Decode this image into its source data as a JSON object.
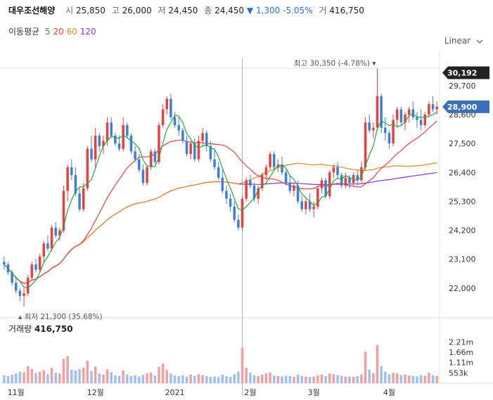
{
  "header": {
    "name": "대우조선해양",
    "open_label": "시",
    "open": "25,850",
    "high_label": "고",
    "high": "26,000",
    "low_label": "저",
    "low": "24,450",
    "close_label": "종",
    "close": "24,450",
    "change_arrow": "▼",
    "change": "1,300",
    "change_pct": "-5.05%",
    "vol_label": "거",
    "volume": "416,750"
  },
  "ma_legend": {
    "title": "이동평균",
    "items": [
      {
        "label": "5",
        "color": "#27a33a"
      },
      {
        "label": "20",
        "color": "#e5413f"
      },
      {
        "label": "60",
        "color": "#e3891d"
      },
      {
        "label": "120",
        "color": "#8a34d1"
      }
    ]
  },
  "scale_mode": "Linear",
  "volume_panel": {
    "title": "거래량",
    "value": "416,750"
  },
  "colors": {
    "up": "#e5413f",
    "down": "#3d7fd9",
    "ma5": "#27a33a",
    "ma20": "#e5413f",
    "ma60": "#e3891d",
    "ma120": "#8a34d1"
  },
  "chart_data": {
    "type": "candlestick",
    "title": "대우조선해양",
    "ylim": [
      21300,
      30500
    ],
    "y_ticks": [
      22000,
      23100,
      24200,
      25300,
      26400,
      27500,
      28600,
      29700
    ],
    "y_tick_labels": [
      "22,000",
      "23,100",
      "24,200",
      "25,300",
      "26,400",
      "27,500",
      "28,600",
      "29,700"
    ],
    "x_labels": [
      "11월",
      "12월",
      "2021",
      "2월",
      "3월",
      "4월"
    ],
    "x_label_indices": [
      3,
      23,
      43,
      62,
      78,
      97
    ],
    "current_price_label": "28,900",
    "current_price": 28900,
    "highlight_label": "30,192",
    "highlight_price": 30192,
    "max_annotation": {
      "label": "최고",
      "value": "30,350 (-4.78%)",
      "price": 30350,
      "index": 94
    },
    "min_annotation": {
      "label": "최저",
      "value": "21,300 (35.68%)",
      "price": 21300,
      "index": 5
    },
    "crosshair_index": 60,
    "candles": [
      [
        23000,
        23200,
        22700,
        22900
      ],
      [
        22900,
        23000,
        22500,
        22600
      ],
      [
        22600,
        22700,
        22100,
        22200
      ],
      [
        22200,
        22400,
        21800,
        21900
      ],
      [
        21900,
        22000,
        21500,
        21700
      ],
      [
        21700,
        22000,
        21300,
        21800
      ],
      [
        21800,
        22500,
        21700,
        22400
      ],
      [
        22400,
        23000,
        22300,
        22900
      ],
      [
        22900,
        23100,
        22600,
        22700
      ],
      [
        22700,
        23300,
        22600,
        23200
      ],
      [
        23200,
        23800,
        23000,
        23700
      ],
      [
        23700,
        24000,
        23400,
        23500
      ],
      [
        23500,
        24400,
        23400,
        24300
      ],
      [
        24300,
        24500,
        23900,
        24000
      ],
      [
        24000,
        24300,
        23800,
        24200
      ],
      [
        24200,
        25900,
        24100,
        25700
      ],
      [
        25700,
        26700,
        25300,
        26600
      ],
      [
        26600,
        26900,
        26100,
        26300
      ],
      [
        26300,
        26600,
        25500,
        25600
      ],
      [
        25600,
        25800,
        24900,
        25000
      ],
      [
        25000,
        26000,
        24900,
        25800
      ],
      [
        25800,
        27400,
        25700,
        27300
      ],
      [
        27300,
        27800,
        26800,
        26900
      ],
      [
        26900,
        28100,
        26600,
        27800
      ],
      [
        27800,
        27900,
        27200,
        27400
      ],
      [
        27400,
        27800,
        27100,
        27600
      ],
      [
        27600,
        28500,
        27400,
        28300
      ],
      [
        28300,
        28500,
        27700,
        27800
      ],
      [
        27800,
        27900,
        27400,
        27500
      ],
      [
        27500,
        27800,
        27200,
        27300
      ],
      [
        27300,
        28500,
        27200,
        28200
      ],
      [
        28200,
        28300,
        27700,
        27800
      ],
      [
        27800,
        27900,
        27100,
        27200
      ],
      [
        27200,
        27400,
        26800,
        26900
      ],
      [
        26900,
        27100,
        26400,
        26500
      ],
      [
        26500,
        26700,
        25900,
        26000
      ],
      [
        26000,
        26700,
        25900,
        26600
      ],
      [
        26600,
        27300,
        26500,
        27200
      ],
      [
        27200,
        27300,
        26700,
        26800
      ],
      [
        26800,
        28300,
        26700,
        28200
      ],
      [
        28200,
        29000,
        28100,
        28800
      ],
      [
        28800,
        29300,
        28600,
        29200
      ],
      [
        29200,
        29400,
        28400,
        28500
      ],
      [
        28500,
        28700,
        28100,
        28200
      ],
      [
        28200,
        28500,
        27800,
        28000
      ],
      [
        28000,
        28100,
        27500,
        27600
      ],
      [
        27600,
        27800,
        27000,
        27100
      ],
      [
        27100,
        27600,
        26900,
        27500
      ],
      [
        27500,
        27700,
        26800,
        26900
      ],
      [
        26900,
        27800,
        26800,
        27600
      ],
      [
        27600,
        28100,
        27400,
        27900
      ],
      [
        27900,
        28000,
        27200,
        27400
      ],
      [
        27400,
        27600,
        26800,
        26900
      ],
      [
        26900,
        27300,
        26500,
        26600
      ],
      [
        26600,
        26800,
        26100,
        26200
      ],
      [
        26200,
        26500,
        25600,
        25700
      ],
      [
        25700,
        25900,
        25200,
        25400
      ],
      [
        25400,
        25600,
        24900,
        25100
      ],
      [
        25100,
        25300,
        24500,
        24600
      ],
      [
        24600,
        24800,
        24200,
        24300
      ],
      [
        24300,
        25500,
        24200,
        25400
      ],
      [
        25400,
        26200,
        25300,
        26100
      ],
      [
        26100,
        26300,
        25800,
        25900
      ],
      [
        25900,
        26000,
        25300,
        25400
      ],
      [
        25400,
        25900,
        25200,
        25800
      ],
      [
        25800,
        26400,
        25700,
        26300
      ],
      [
        26300,
        26700,
        26100,
        26600
      ],
      [
        26600,
        27200,
        26500,
        27100
      ],
      [
        27100,
        27200,
        26500,
        26600
      ],
      [
        26600,
        26900,
        26400,
        26700
      ],
      [
        26700,
        27000,
        26300,
        26400
      ],
      [
        26400,
        26500,
        25900,
        26000
      ],
      [
        26000,
        26300,
        25600,
        25700
      ],
      [
        25700,
        26000,
        25500,
        25900
      ],
      [
        25900,
        26100,
        25200,
        25300
      ],
      [
        25300,
        25500,
        24900,
        25000
      ],
      [
        25000,
        25400,
        24800,
        25300
      ],
      [
        25300,
        25600,
        24900,
        25000
      ],
      [
        25000,
        25300,
        24700,
        25100
      ],
      [
        25100,
        25900,
        25000,
        25800
      ],
      [
        25800,
        26200,
        25600,
        26100
      ],
      [
        26100,
        26200,
        25400,
        25500
      ],
      [
        25500,
        26500,
        25400,
        26400
      ],
      [
        26400,
        26700,
        26200,
        26600
      ],
      [
        26600,
        26800,
        26200,
        26300
      ],
      [
        26300,
        26400,
        25800,
        25900
      ],
      [
        25900,
        26400,
        25800,
        26200
      ],
      [
        26200,
        26300,
        25800,
        26000
      ],
      [
        26000,
        26400,
        25900,
        26300
      ],
      [
        26300,
        26500,
        25900,
        26100
      ],
      [
        26100,
        26800,
        26000,
        26600
      ],
      [
        26600,
        28500,
        26500,
        28300
      ],
      [
        28300,
        28600,
        27900,
        28000
      ],
      [
        28000,
        28300,
        27700,
        28100
      ],
      [
        28100,
        30350,
        28000,
        29300
      ],
      [
        29300,
        29400,
        27900,
        28100
      ],
      [
        28100,
        28500,
        27600,
        27900
      ],
      [
        27900,
        28000,
        27300,
        27500
      ],
      [
        27500,
        28600,
        27400,
        28400
      ],
      [
        28400,
        28900,
        28100,
        28800
      ],
      [
        28800,
        28900,
        28200,
        28300
      ],
      [
        28300,
        28700,
        28000,
        28600
      ],
      [
        28600,
        28900,
        28300,
        28800
      ],
      [
        28800,
        29100,
        28400,
        28500
      ],
      [
        28500,
        28700,
        28100,
        28400
      ],
      [
        28400,
        28800,
        28000,
        28200
      ],
      [
        28200,
        28700,
        28100,
        28600
      ],
      [
        28600,
        29100,
        28500,
        29000
      ],
      [
        29000,
        29300,
        28700,
        28800
      ],
      [
        28800,
        29100,
        28600,
        28900
      ]
    ],
    "volumes": [
      420,
      380,
      450,
      520,
      610,
      580,
      900,
      760,
      540,
      620,
      700,
      480,
      820,
      560,
      510,
      1300,
      1450,
      720,
      680,
      760,
      820,
      1200,
      640,
      880,
      520,
      460,
      740,
      580,
      420,
      390,
      680,
      460,
      380,
      420,
      360,
      440,
      520,
      560,
      410,
      880,
      1050,
      700,
      520,
      410,
      380,
      420,
      350,
      460,
      390,
      480,
      430,
      380,
      340,
      360,
      330,
      450,
      380,
      340,
      480,
      620,
      1900,
      820,
      560,
      420,
      380,
      460,
      520,
      560,
      410,
      380,
      360,
      400,
      380,
      340,
      450,
      380,
      350,
      330,
      360,
      420,
      460,
      380,
      520,
      480,
      430,
      380,
      350,
      360,
      340,
      380,
      460,
      1680,
      720,
      540,
      2050,
      920,
      610,
      480,
      560,
      520,
      440,
      460,
      410,
      390,
      360,
      430,
      400,
      560,
      430,
      380
    ],
    "vol_ticks": [
      553000,
      1110000,
      1660000,
      2210000
    ],
    "vol_tick_labels": [
      "553k",
      "1.11m",
      "1.66m",
      "2.21m"
    ],
    "vol_max": 2450000
  }
}
